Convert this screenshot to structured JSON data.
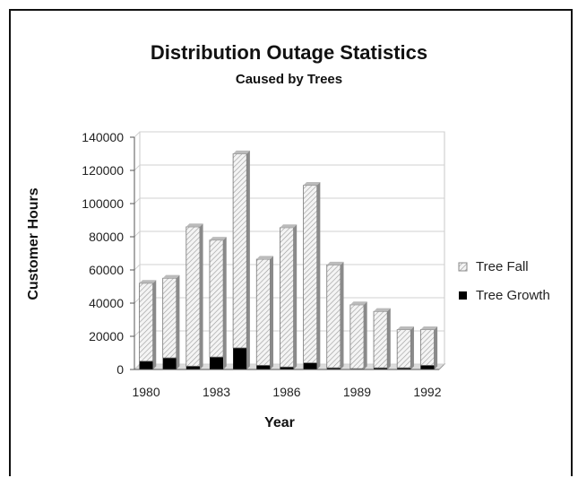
{
  "chart_data": {
    "type": "bar",
    "stacked": true,
    "title": "Distribution Outage Statistics",
    "subtitle": "Caused by Trees",
    "xlabel": "Year",
    "ylabel": "Customer Hours",
    "ylim": [
      0,
      140000
    ],
    "yticks": [
      0,
      20000,
      40000,
      60000,
      80000,
      100000,
      120000,
      140000
    ],
    "categories": [
      "1980",
      "1981",
      "1982",
      "1983",
      "1984",
      "1985",
      "1986",
      "1987",
      "1988",
      "1989",
      "1990",
      "1991",
      "1992"
    ],
    "xtick_labels": [
      "1980",
      "1983",
      "1986",
      "1989",
      "1992"
    ],
    "grid": true,
    "legend_position": "right",
    "series": [
      {
        "name": "Tree Growth",
        "color": "#000000",
        "values": [
          5000,
          7000,
          2000,
          7500,
          13000,
          2500,
          1500,
          4000,
          1000,
          500,
          1000,
          1000,
          2500
        ]
      },
      {
        "name": "Tree Fall",
        "color": "#e8e8e8",
        "values": [
          47000,
          48000,
          84000,
          70500,
          117000,
          64000,
          84000,
          107000,
          62000,
          38500,
          34000,
          23000,
          21500
        ]
      }
    ]
  }
}
